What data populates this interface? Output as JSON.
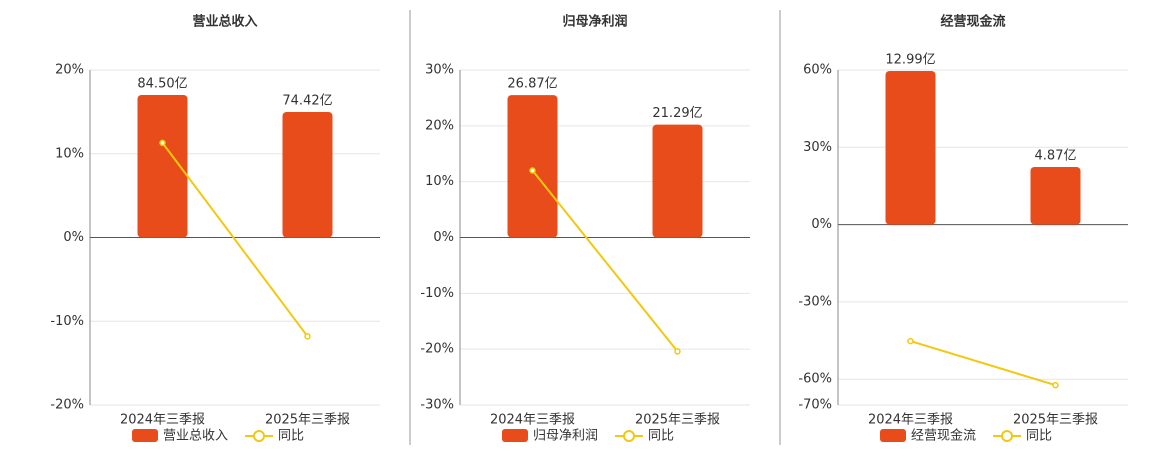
{
  "chart_data": [
    {
      "type": "bar",
      "title": "营业总收入",
      "categories": [
        "2024年三季报",
        "2025年三季报"
      ],
      "ylim": [
        -20,
        20
      ],
      "yticks": [
        {
          "value": -20,
          "label": "-20%"
        },
        {
          "value": -10,
          "label": "-10%"
        },
        {
          "value": 0,
          "label": "0%"
        },
        {
          "value": 10,
          "label": "10%"
        },
        {
          "value": 20,
          "label": "20%"
        }
      ],
      "y2lim": [
        -99.3,
        99.3
      ],
      "series": [
        {
          "name": "营业总收入",
          "type": "bar",
          "axis": "y2",
          "color": "#e84c1a",
          "values": [
            84.5,
            74.42
          ],
          "value_labels": [
            "84.50亿",
            "74.42亿"
          ]
        },
        {
          "name": "同比",
          "type": "line",
          "color": "#f2c811",
          "values": [
            11.3,
            -11.8
          ]
        }
      ]
    },
    {
      "type": "bar",
      "title": "归母净利润",
      "categories": [
        "2024年三季报",
        "2025年三季报"
      ],
      "ylim": [
        -30,
        30
      ],
      "yticks": [
        {
          "value": -30,
          "label": "-30%"
        },
        {
          "value": -20,
          "label": "-20%"
        },
        {
          "value": -10,
          "label": "-10%"
        },
        {
          "value": 0,
          "label": "0%"
        },
        {
          "value": 10,
          "label": "10%"
        },
        {
          "value": 20,
          "label": "20%"
        },
        {
          "value": 30,
          "label": "30%"
        }
      ],
      "y2lim": [
        -31.6,
        31.6
      ],
      "series": [
        {
          "name": "归母净利润",
          "type": "bar",
          "axis": "y2",
          "color": "#e84c1a",
          "values": [
            26.87,
            21.29
          ],
          "value_labels": [
            "26.87亿",
            "21.29亿"
          ]
        },
        {
          "name": "同比",
          "type": "line",
          "color": "#f2c811",
          "values": [
            12.0,
            -20.4
          ]
        }
      ]
    },
    {
      "type": "bar",
      "title": "经营现金流",
      "categories": [
        "2024年三季报",
        "2025年三季报"
      ],
      "ylim": [
        -70,
        60
      ],
      "yticks": [
        {
          "value": -70,
          "label": "-70%"
        },
        {
          "value": -60,
          "label": "-60%"
        },
        {
          "value": -30,
          "label": "-30%"
        },
        {
          "value": 0,
          "label": "0%"
        },
        {
          "value": 30,
          "label": "30%"
        },
        {
          "value": 60,
          "label": "60%"
        }
      ],
      "y2lim": [
        -15.25,
        13.07
      ],
      "series": [
        {
          "name": "经营现金流",
          "type": "bar",
          "axis": "y2",
          "color": "#e84c1a",
          "values": [
            12.99,
            4.87
          ],
          "value_labels": [
            "12.99亿",
            "4.87亿"
          ]
        },
        {
          "name": "同比",
          "type": "line",
          "color": "#f2c811",
          "values": [
            -45.2,
            -62.3
          ]
        }
      ]
    }
  ]
}
